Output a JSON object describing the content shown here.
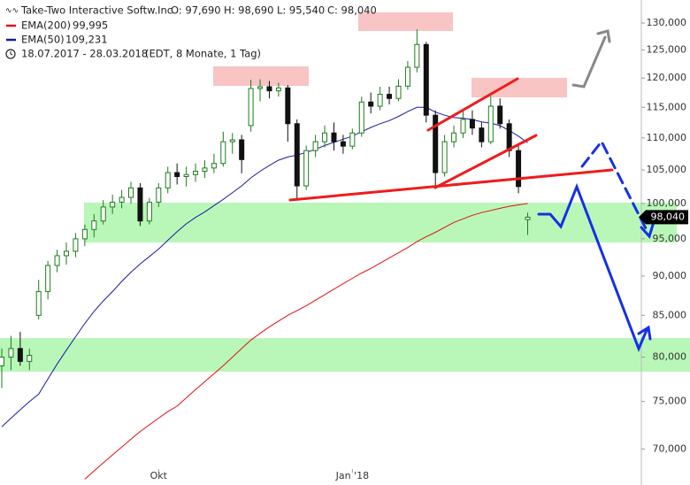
{
  "chart_data": {
    "type": "candlestick",
    "title": "Take-Two Interactive Softw.Inc",
    "ohlc_labels": [
      "O: 97,690",
      "H: 98,690",
      "L: 95,540",
      "C: 98,040"
    ],
    "subtitle": "18.07.2017 - 28.03.2018",
    "period_note": "(EDT, 8 Monate, 1 Tag)",
    "log_scale": true,
    "grid": false,
    "up_color": "#1f7a1f",
    "down_color": "#111111",
    "categories": [
      null,
      null,
      null,
      null,
      null,
      null,
      null,
      null,
      null,
      null,
      null,
      null,
      null,
      null,
      null,
      null,
      null,
      "Okt",
      null,
      null,
      null,
      null,
      null,
      null,
      null,
      null,
      null,
      null,
      null,
      null,
      null,
      null,
      null,
      null,
      null,
      null,
      null,
      null,
      "Jan '18",
      null,
      null,
      null,
      null,
      null,
      null,
      null,
      null,
      null,
      null,
      null,
      null,
      null,
      null,
      null,
      null,
      null,
      null,
      null
    ],
    "candles": {
      "open": [
        79000,
        80000,
        81000,
        79500,
        85000,
        88000,
        91400,
        92700,
        93300,
        95000,
        96300,
        97500,
        99500,
        100200,
        100900,
        102300,
        97500,
        100200,
        102300,
        104600,
        104000,
        104300,
        104800,
        105300,
        106000,
        109400,
        109700,
        112000,
        118200,
        118500,
        117800,
        118300,
        112300,
        102600,
        108000,
        109400,
        110800,
        109400,
        108700,
        110800,
        115900,
        115200,
        117200,
        116500,
        118600,
        121900,
        126000,
        113700,
        104600,
        109400,
        110800,
        113000,
        111600,
        109400,
        115200,
        112300,
        108000,
        97690
      ],
      "high": [
        81000,
        82500,
        83000,
        81000,
        89500,
        92000,
        93500,
        94500,
        95800,
        97000,
        98500,
        100500,
        101300,
        102000,
        103200,
        103000,
        100800,
        103000,
        105500,
        106000,
        105500,
        106000,
        106500,
        107500,
        111000,
        110800,
        110500,
        119700,
        119800,
        119500,
        119200,
        118800,
        113000,
        108800,
        110500,
        112000,
        112500,
        110500,
        111500,
        116800,
        117500,
        118500,
        118500,
        119800,
        123000,
        128800,
        126500,
        114500,
        110500,
        112000,
        114500,
        114500,
        112500,
        116900,
        116500,
        113000,
        109000,
        98690
      ],
      "low": [
        76500,
        78500,
        79000,
        78500,
        84500,
        87000,
        90500,
        91500,
        92500,
        94000,
        95200,
        97000,
        98500,
        99300,
        100000,
        96800,
        97000,
        99500,
        101500,
        102800,
        102500,
        103200,
        103800,
        104500,
        105500,
        107500,
        104500,
        111000,
        116000,
        116500,
        116800,
        109400,
        100500,
        102000,
        107000,
        108500,
        108000,
        107500,
        108200,
        110200,
        114000,
        114500,
        115500,
        116000,
        118000,
        121000,
        112500,
        102600,
        104000,
        108500,
        110000,
        110500,
        108500,
        109000,
        111500,
        107000,
        101500,
        95540
      ],
      "close": [
        80000,
        81000,
        79500,
        80200,
        88000,
        91400,
        92700,
        93300,
        95000,
        96300,
        97500,
        99500,
        100200,
        100900,
        102300,
        97500,
        100200,
        102300,
        104600,
        104000,
        104300,
        104800,
        105300,
        106000,
        109400,
        109700,
        106600,
        118200,
        118500,
        117800,
        118300,
        112300,
        102600,
        108000,
        109400,
        110800,
        109400,
        108700,
        110800,
        115900,
        115200,
        117200,
        116500,
        118600,
        121900,
        126000,
        113700,
        104600,
        109400,
        110800,
        113000,
        111600,
        109400,
        115200,
        112300,
        108000,
        102500,
        98040
      ],
      "last_close_label": "98,040"
    },
    "series": [
      {
        "name": "EMA(200)",
        "color": "#e01010",
        "last_label": "99,995",
        "values": [
          null,
          null,
          null,
          null,
          null,
          null,
          null,
          null,
          null,
          67000,
          67800,
          68600,
          69400,
          70200,
          71000,
          71800,
          72500,
          73200,
          73900,
          74500,
          75400,
          76300,
          77200,
          78100,
          79000,
          80000,
          81000,
          82000,
          82800,
          83600,
          84300,
          85000,
          85600,
          86200,
          86900,
          87600,
          88300,
          89000,
          89700,
          90400,
          91000,
          91700,
          92400,
          93100,
          93800,
          94600,
          95300,
          95900,
          96600,
          97300,
          97800,
          98300,
          98700,
          99000,
          99300,
          99600,
          99800,
          99995
        ]
      },
      {
        "name": "EMA(50)",
        "color": "#1a1aa0",
        "last_label": "109,231",
        "values": [
          72300,
          73200,
          74100,
          75000,
          75800,
          77500,
          79200,
          80800,
          82400,
          84000,
          85500,
          86800,
          88000,
          89300,
          90500,
          91600,
          92600,
          93600,
          94800,
          96000,
          97100,
          98000,
          98800,
          99700,
          100600,
          101600,
          102600,
          103800,
          104800,
          105700,
          106500,
          107000,
          107300,
          107700,
          108200,
          108800,
          109300,
          109800,
          110300,
          111000,
          111700,
          112300,
          112800,
          113500,
          114300,
          115000,
          115000,
          114200,
          113700,
          113300,
          113200,
          113000,
          112600,
          112400,
          112000,
          111200,
          110300,
          109231
        ]
      }
    ],
    "ylim": [
      66430,
      134420
    ],
    "yticks": [
      {
        "value": 70000,
        "label": "70,000"
      },
      {
        "value": 75000,
        "label": "75,000"
      },
      {
        "value": 80000,
        "label": "80,000"
      },
      {
        "value": 85000,
        "label": "85,000"
      },
      {
        "value": 90000,
        "label": "90,000"
      },
      {
        "value": 95000,
        "label": "95,000"
      },
      {
        "value": 100000,
        "label": "100,000"
      },
      {
        "value": 105000,
        "label": "105,000"
      },
      {
        "value": 110000,
        "label": "110,000"
      },
      {
        "value": 115000,
        "label": "115,000"
      },
      {
        "value": 120000,
        "label": "120,000"
      },
      {
        "value": 125000,
        "label": "125,000"
      },
      {
        "value": 130000,
        "label": "130,000"
      }
    ]
  }
}
